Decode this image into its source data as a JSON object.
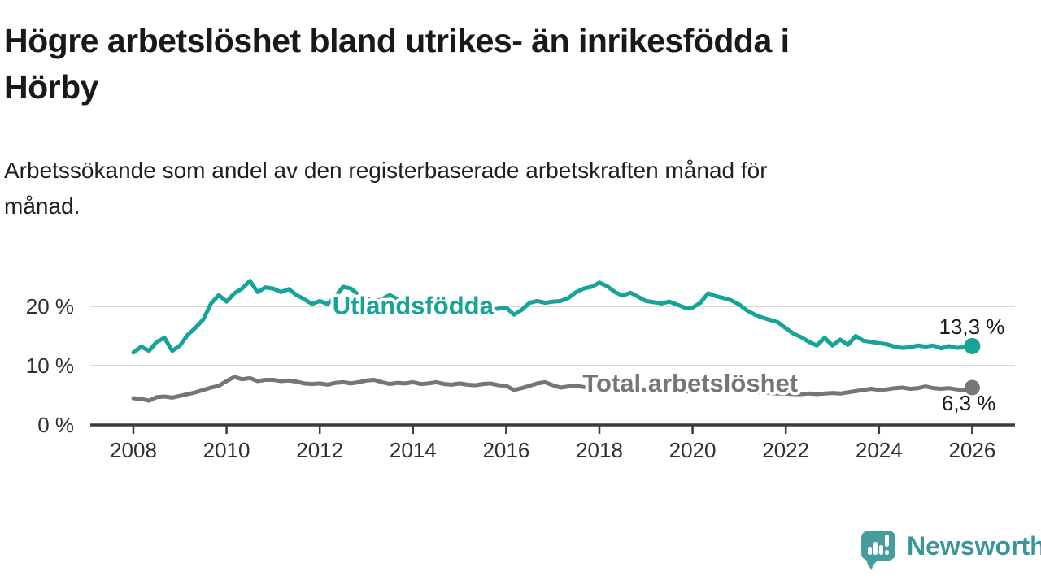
{
  "header": {
    "title_line1": "Högre arbetslöshet bland utrikes- än inrikesfödda i",
    "title_line2": "Hörby",
    "subtitle_line1": "Arbetssökande som andel av den registerbaserade arbetskraften månad för",
    "subtitle_line2": "månad."
  },
  "footer": {
    "brand_name": "Newsworthy",
    "brand_icon": "newsworthy-speech-bubble-bar-chart-icon"
  },
  "colors": {
    "foreign_born_line": "#16a398",
    "total_line": "#76757a",
    "axis": "#3b3b3b",
    "grid": "#d8d8d8",
    "tick_text": "#303030",
    "value_label_text": "#1a1a1a",
    "brand_icon": "#459d9d",
    "brand_text": "#38969b",
    "background": "#ffffff"
  },
  "chart_data": {
    "type": "line",
    "title": "Högre arbetslöshet bland utrikes- än inrikesfödda i Hörby",
    "subtitle": "Arbetssökande som andel av den registerbaserade arbetskraften månad för månad.",
    "xlabel": "",
    "ylabel": "",
    "grid": "horizontal",
    "legend_position": "inline-labels",
    "x_start": 2008,
    "x_step_years": 0.16667,
    "x_ticks": [
      {
        "value": 2008,
        "label": "2008"
      },
      {
        "value": 2010,
        "label": "2010"
      },
      {
        "value": 2012,
        "label": "2012"
      },
      {
        "value": 2014,
        "label": "2014"
      },
      {
        "value": 2016,
        "label": "2016"
      },
      {
        "value": 2018,
        "label": "2018"
      },
      {
        "value": 2020,
        "label": "2020"
      },
      {
        "value": 2022,
        "label": "2022"
      },
      {
        "value": 2024,
        "label": "2024"
      },
      {
        "value": 2026,
        "label": "2026"
      }
    ],
    "y_ticks": [
      {
        "value": 0,
        "label": "0 %"
      },
      {
        "value": 10,
        "label": "10 %"
      },
      {
        "value": 20,
        "label": "20 %"
      }
    ],
    "ylim": [
      0,
      26
    ],
    "xlim": [
      2007.1,
      2026.9
    ],
    "series": [
      {
        "name": "Total arbetslöshet",
        "color": "#76757a",
        "inline_label": "Total arbetslöshet",
        "label_anchor": {
          "year": 2019.95,
          "pct": 7.1
        },
        "end_label": "6,3 %",
        "end_value": 6.3,
        "values": [
          4.5,
          4.4,
          4.1,
          4.7,
          4.8,
          4.6,
          4.9,
          5.2,
          5.5,
          5.9,
          6.3,
          6.6,
          7.4,
          8.1,
          7.7,
          7.9,
          7.4,
          7.6,
          7.6,
          7.4,
          7.5,
          7.3,
          7.0,
          6.9,
          7.0,
          6.8,
          7.1,
          7.2,
          7.0,
          7.2,
          7.5,
          7.6,
          7.2,
          6.9,
          7.1,
          7.0,
          7.2,
          6.9,
          7.0,
          7.2,
          6.9,
          6.8,
          7.0,
          6.8,
          6.7,
          6.9,
          7.0,
          6.7,
          6.6,
          5.9,
          6.2,
          6.6,
          7.0,
          7.2,
          6.7,
          6.3,
          6.5,
          6.6,
          6.4,
          6.2,
          6.3,
          6.1,
          6.0,
          6.2,
          6.0,
          5.9,
          6.0,
          5.8,
          5.7,
          5.9,
          5.7,
          5.6,
          5.8,
          6.2,
          6.6,
          6.5,
          6.3,
          6.2,
          6.0,
          5.8,
          5.6,
          5.5,
          5.4,
          5.3,
          5.3,
          5.2,
          5.2,
          5.3,
          5.2,
          5.3,
          5.4,
          5.3,
          5.5,
          5.7,
          5.9,
          6.1,
          5.9,
          6.0,
          6.2,
          6.3,
          6.1,
          6.2,
          6.5,
          6.2,
          6.1,
          6.2,
          6.0,
          5.9,
          6.3
        ]
      },
      {
        "name": "Utlandsfödda",
        "color": "#16a398",
        "inline_label": "Utlandsfödda",
        "label_anchor": {
          "year": 2014.0,
          "pct": 20.2
        },
        "end_label": "13,3 %",
        "end_value": 13.3,
        "values": [
          12.2,
          13.2,
          12.5,
          14.0,
          14.7,
          12.5,
          13.4,
          15.2,
          16.4,
          17.8,
          20.5,
          21.9,
          20.8,
          22.2,
          23.0,
          24.3,
          22.4,
          23.2,
          23.0,
          22.4,
          22.9,
          21.9,
          21.2,
          20.4,
          20.9,
          20.4,
          21.6,
          23.3,
          23.0,
          21.9,
          21.4,
          20.8,
          21.2,
          21.9,
          21.2,
          20.8,
          21.0,
          20.5,
          20.2,
          20.6,
          20.1,
          19.8,
          20.0,
          19.6,
          19.3,
          19.2,
          19.4,
          19.6,
          19.8,
          18.6,
          19.4,
          20.6,
          20.9,
          20.6,
          20.8,
          20.9,
          21.4,
          22.4,
          23.0,
          23.3,
          24.0,
          23.4,
          22.4,
          21.8,
          22.3,
          21.6,
          20.9,
          20.7,
          20.5,
          20.8,
          20.3,
          19.8,
          19.8,
          20.6,
          22.2,
          21.7,
          21.4,
          21.0,
          20.3,
          19.3,
          18.6,
          18.1,
          17.7,
          17.3,
          16.3,
          15.4,
          14.8,
          14.0,
          13.4,
          14.7,
          13.4,
          14.4,
          13.5,
          15.0,
          14.2,
          14.0,
          13.8,
          13.6,
          13.2,
          13.0,
          13.1,
          13.4,
          13.2,
          13.4,
          12.9,
          13.3,
          13.0,
          13.1,
          13.3
        ]
      }
    ]
  }
}
